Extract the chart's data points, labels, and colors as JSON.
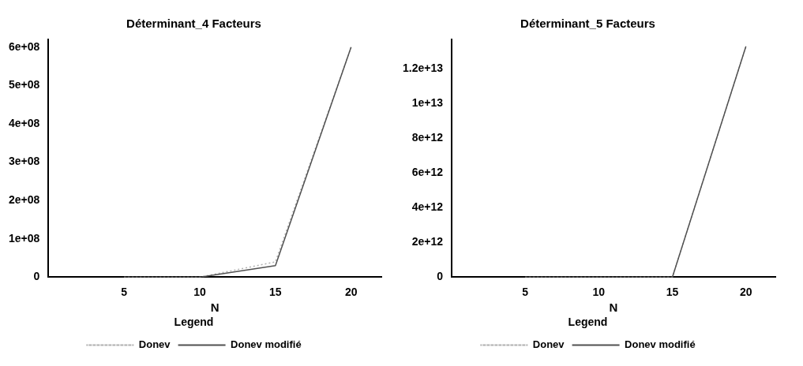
{
  "chart_data": [
    {
      "type": "line",
      "title": "Déterminant_4 Facteurs",
      "xlabel": "N",
      "legend_title": "Legend",
      "x": [
        5,
        10,
        15,
        20
      ],
      "series": [
        {
          "name": "Donev",
          "color": "#b0b0b0",
          "line_style": "dotted",
          "values": [
            0,
            0,
            40000000,
            600000000
          ]
        },
        {
          "name": "Donev modifié",
          "color": "#505050",
          "line_style": "solid",
          "values": [
            0,
            0,
            30000000,
            600000000
          ]
        }
      ],
      "xlim": [
        0,
        22
      ],
      "xticks": [
        5,
        10,
        15,
        20
      ],
      "ylim": [
        0,
        620000000
      ],
      "yticks": [
        0,
        {
          "value": 100000000,
          "label": "1e+08"
        },
        {
          "value": 200000000,
          "label": "2e+08"
        },
        {
          "value": 300000000,
          "label": "3e+08"
        },
        {
          "value": 400000000,
          "label": "4e+08"
        },
        {
          "value": 500000000,
          "label": "5e+08"
        },
        {
          "value": 600000000,
          "label": "6e+08"
        }
      ],
      "grid": false,
      "legend": "bottom",
      "marker": "none"
    },
    {
      "type": "line",
      "title": "Déterminant_5 Facteurs",
      "xlabel": "N",
      "legend_title": "Legend",
      "x": [
        5,
        10,
        15,
        20
      ],
      "series": [
        {
          "name": "Donev",
          "color": "#b0b0b0",
          "line_style": "dotted",
          "values": [
            0,
            0,
            0,
            13300000000000
          ]
        },
        {
          "name": "Donev modifié",
          "color": "#505050",
          "line_style": "solid",
          "values": [
            0,
            0,
            0,
            13300000000000
          ]
        }
      ],
      "xlim": [
        0,
        22
      ],
      "xticks": [
        5,
        10,
        15,
        20
      ],
      "ylim": [
        0,
        13700000000000
      ],
      "yticks": [
        0,
        {
          "value": 2000000000000,
          "label": "2e+12"
        },
        {
          "value": 4000000000000,
          "label": "4e+12"
        },
        {
          "value": 6000000000000,
          "label": "6e+12"
        },
        {
          "value": 8000000000000,
          "label": "8e+12"
        },
        {
          "value": 10000000000000,
          "label": "1e+13"
        },
        {
          "value": 12000000000000,
          "label": "1.2e+13"
        }
      ],
      "grid": false,
      "legend": "bottom",
      "marker": "none"
    }
  ]
}
